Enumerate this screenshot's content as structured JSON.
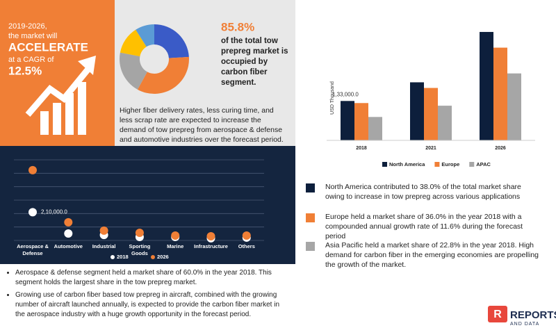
{
  "banner": {
    "lines": [
      "2019-2026,",
      "the market will",
      "ACCELERATE",
      "at a CAGR of",
      "12.5%"
    ]
  },
  "highlight": {
    "figure": "85.8%",
    "text": "of the total tow prepreg market is occupied by carbon fiber segment."
  },
  "paragraph": "Higher fiber delivery rates, less curing time, and less scrap rate are expected to increase the demand of tow prepreg from aerospace & defense and automotive industries over the forecast period.",
  "chart_data": [
    {
      "type": "pie",
      "values": [
        24,
        34,
        20,
        13,
        9
      ],
      "colors": [
        "#3a5bc7",
        "#f07f36",
        "#a5a5a5",
        "#ffc000",
        "#5b9bd5"
      ]
    },
    {
      "type": "bar",
      "ylabel": "USD Thousand",
      "categories": [
        "2018",
        "2021",
        "2026"
      ],
      "series": [
        {
          "name": "North America",
          "color": "#0d1f3c",
          "values": [
            133000,
            196000,
            366000
          ],
          "value_labels": [
            "1,33,000.0",
            null,
            null
          ]
        },
        {
          "name": "Europe",
          "color": "#f07f36",
          "values": [
            126000,
            177000,
            313000
          ]
        },
        {
          "name": "APAC",
          "color": "#a6a6a6",
          "values": [
            79000,
            117000,
            226000
          ]
        }
      ],
      "ylim": [
        0,
        380000
      ]
    },
    {
      "type": "dot",
      "categories": [
        "Aerospace & Defense",
        "Automotive",
        "Industrial",
        "Sporting Goods",
        "Marine",
        "Infrastructure",
        "Others"
      ],
      "series": [
        {
          "name": "2018",
          "color": "#ffffff",
          "values": [
            210000,
            52000,
            41000,
            26000,
            26000,
            16000,
            21000
          ],
          "value_labels": [
            "2,10,000.0",
            null,
            null,
            null,
            null,
            null,
            null
          ]
        },
        {
          "name": "2026",
          "color": "#f07f36",
          "values": [
            523000,
            135000,
            73000,
            57000,
            36000,
            31000,
            36000
          ]
        }
      ],
      "ylim": [
        0,
        600000
      ],
      "yticks": [
        0,
        100000,
        200000,
        300000,
        400000,
        500000,
        600000
      ],
      "grid": true
    }
  ],
  "notes": [
    {
      "color": "#0d1f3c",
      "text": "North America contributed to 38.0% of the total market share owing to increase in tow prepreg across various applications"
    },
    {
      "color": "#f07f36",
      "text": "Europe held a market share of 36.0% in the year 2018 with a compounded annual growth rate of 11.6% during the forecast period"
    },
    {
      "color": "#a6a6a6",
      "text": "Asia Pacific held a market share of 22.8% in the year 2018. High demand for carbon fiber in the emerging economies are propelling the growth of the market."
    }
  ],
  "bullets": [
    "Aerospace & defense segment held a market share of 60.0% in the year 2018. This segment holds the largest share in the tow prepreg market.",
    "Growing use of carbon fiber based tow prepreg in aircraft, combined with the growing number of aircraft launched annually, is expected to provide the carbon fiber market in the aerospace industry with a huge growth opportunity in the forecast period."
  ],
  "logo": {
    "mark": "R",
    "name": "REPORTS",
    "sub": "AND DATA"
  }
}
